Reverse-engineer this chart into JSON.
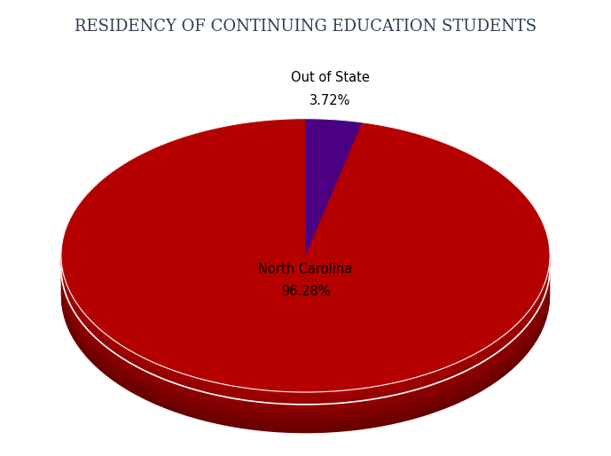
{
  "title": "RESIDENCY OF CONTINUING EDUCATION STUDENTS",
  "slices": [
    96.28,
    3.72
  ],
  "labels": [
    "North Carolina",
    "Out of State"
  ],
  "percentages": [
    "96.28%",
    "3.72%"
  ],
  "colors": [
    "#B50000",
    "#4B0082"
  ],
  "depth_color_top": "#9A0000",
  "depth_color_bottom": "#5A0000",
  "background_color": "#FFFFFF",
  "title_color": "#2C3E50",
  "label_fontsize": 10.5,
  "pct_fontsize": 10.5,
  "title_fontsize": 13,
  "figsize": [
    6.89,
    5.14
  ],
  "dpi": 100
}
